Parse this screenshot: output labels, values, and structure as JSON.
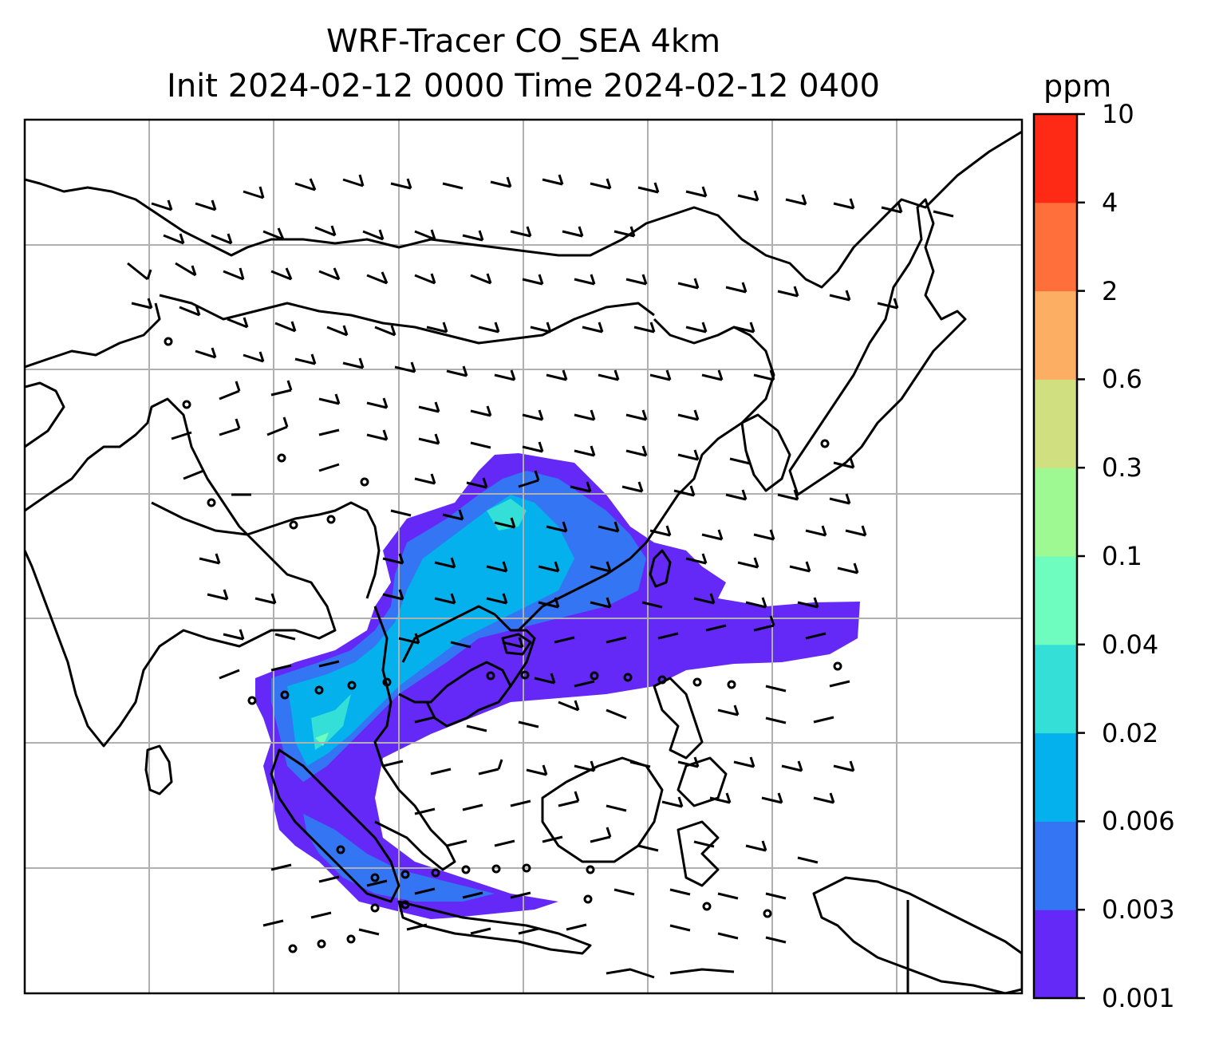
{
  "title_line1": "WRF-Tracer CO_SEA 4km",
  "title_line2": "Init 2024-02-12 0000 Time 2024-02-12 0400",
  "colorbar": {
    "unit": "ppm",
    "levels": [
      "0.001",
      "0.003",
      "0.006",
      "0.02",
      "0.04",
      "0.1",
      "0.3",
      "0.6",
      "2",
      "4",
      "10"
    ],
    "colors": [
      "#6429f7",
      "#3475f3",
      "#04b1ec",
      "#33dfd6",
      "#6ffcbf",
      "#9ff992",
      "#d0e080",
      "#fcae63",
      "#ff6f3b",
      "#ff2a16"
    ]
  },
  "map": {
    "gridlines": true,
    "overlays": [
      "coastlines",
      "country-borders",
      "wind-barbs",
      "co-tracer-filled-contours"
    ]
  }
}
